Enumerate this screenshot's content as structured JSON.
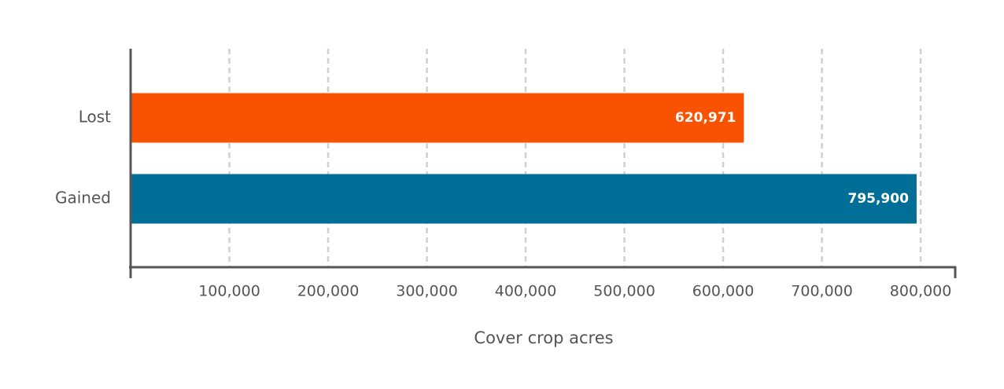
{
  "chart_data": {
    "type": "hbar",
    "categories": [
      "Lost",
      "Gained"
    ],
    "values": [
      620971,
      795900
    ],
    "value_labels": [
      "620,971",
      "795,900"
    ],
    "colors": [
      "#f95200",
      "#006e96"
    ],
    "x_label": "Cover crop acres",
    "xlim": [
      0,
      835000
    ],
    "xticks": [
      {
        "value": 100000,
        "label": "100,000"
      },
      {
        "value": 200000,
        "label": "200,000"
      },
      {
        "value": 300000,
        "label": "300,000"
      },
      {
        "value": 400000,
        "label": "400,000"
      },
      {
        "value": 500000,
        "label": "500,000"
      },
      {
        "value": 600000,
        "label": "600,000"
      },
      {
        "value": 700000,
        "label": "700,000"
      },
      {
        "value": 800000,
        "label": "800,000"
      }
    ],
    "grid": true
  }
}
